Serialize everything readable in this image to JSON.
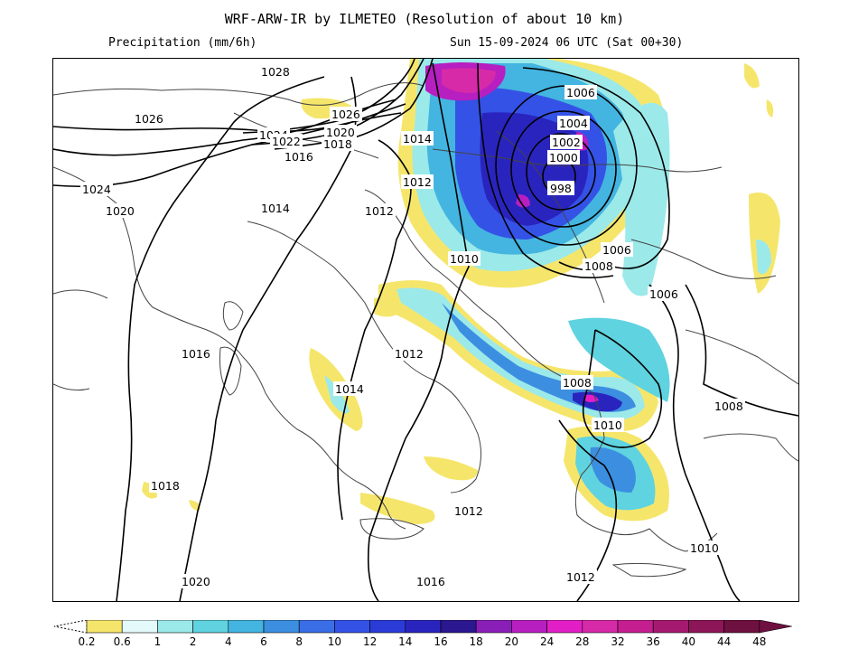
{
  "header": {
    "title": "WRF-ARW-IR by ILMETEO (Resolution of about 10 km)",
    "variable": "Precipitation (mm/6h)",
    "valid_time": "Sun 15-09-2024 06 UTC (Sat 00+30)"
  },
  "isobars": {
    "unit_note": "Isobar values (hPa) printed on the map",
    "labels": [
      "1028",
      "1026",
      "1026",
      "1024",
      "1022",
      "1020",
      "1018",
      "1016",
      "1014",
      "1024",
      "1020",
      "1014",
      "1012",
      "1012",
      "1010",
      "1006",
      "1004",
      "1002",
      "1000",
      "998",
      "1006",
      "1006",
      "1016",
      "1012",
      "1014",
      "1008",
      "1010",
      "1008",
      "1018",
      "1012",
      "1016",
      "1020",
      "1012",
      "1010",
      "1008"
    ]
  },
  "legend": {
    "ticks": [
      "0.2",
      "0.6",
      "1",
      "2",
      "4",
      "6",
      "8",
      "10",
      "12",
      "14",
      "16",
      "18",
      "20",
      "24",
      "28",
      "32",
      "36",
      "40",
      "44",
      "48"
    ],
    "colors": [
      "#f5e66b",
      "#e4f9f9",
      "#9ce9ea",
      "#5fd3e0",
      "#43b5e0",
      "#3c8fe0",
      "#3a6ee6",
      "#3552e6",
      "#2b3bd8",
      "#2a24bf",
      "#2b178f",
      "#8a1fb8",
      "#b71fc0",
      "#e21fc6",
      "#d72aa8",
      "#c41e90",
      "#a51a70",
      "#8c1657",
      "#6e1040"
    ]
  },
  "colors": {
    "isobar": "#000000",
    "coast": "#444444",
    "sea": "#ffffff"
  }
}
